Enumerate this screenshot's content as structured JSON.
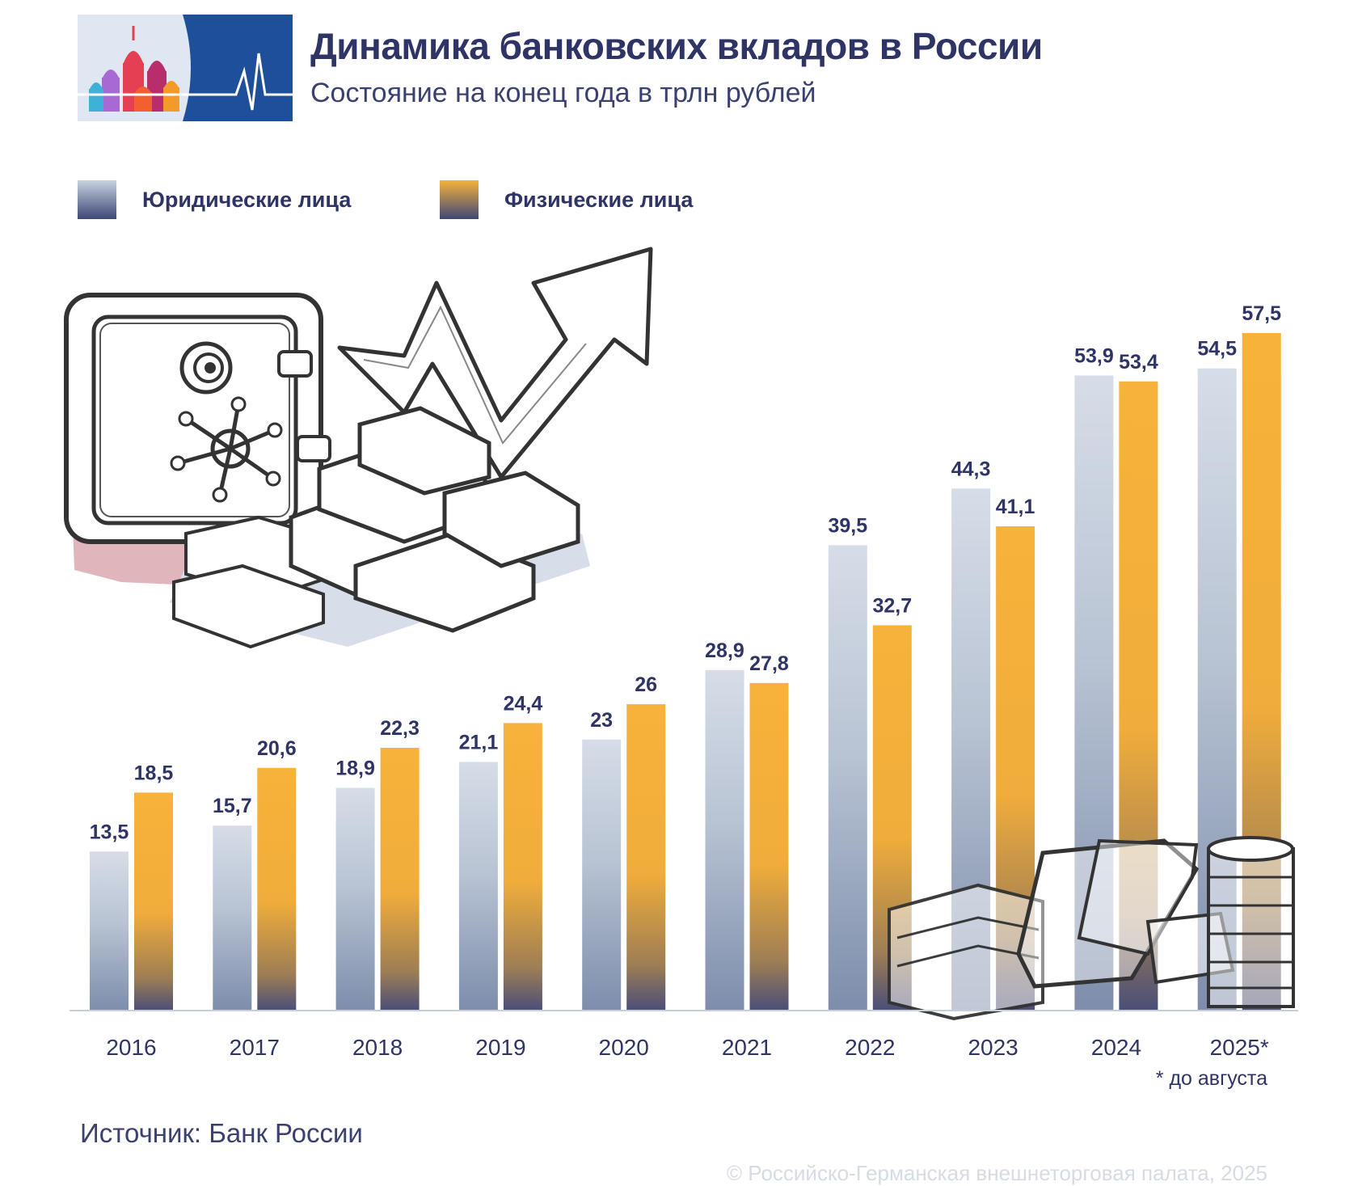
{
  "header": {
    "title": "Динамика банковских вкладов в России",
    "subtitle": "Состояние на конец года в трлн рублей"
  },
  "legend": [
    {
      "label": "Юридические лица",
      "color": "#d2dae6"
    },
    {
      "label": "Физические лица",
      "color": "#f6b23a"
    }
  ],
  "chart_data": {
    "type": "bar",
    "title": "Динамика банковских вкладов в России",
    "subtitle": "Состояние на конец года в трлн рублей",
    "categories": [
      "2016",
      "2017",
      "2018",
      "2019",
      "2020",
      "2021",
      "2022",
      "2023",
      "2024",
      "2025*"
    ],
    "series": [
      {
        "name": "Юридические лица",
        "values": [
          13.5,
          15.7,
          18.9,
          21.1,
          23,
          28.9,
          39.5,
          44.3,
          53.9,
          54.5
        ],
        "labels": [
          "13,5",
          "15,7",
          "18,9",
          "21,1",
          "23",
          "28,9",
          "39,5",
          "44,3",
          "53,9",
          "54,5"
        ]
      },
      {
        "name": "Физические лица",
        "values": [
          18.5,
          20.6,
          22.3,
          24.4,
          26,
          27.8,
          32.7,
          41.1,
          53.4,
          57.5
        ],
        "labels": [
          "18,5",
          "20,6",
          "22,3",
          "24,4",
          "26",
          "27,8",
          "32,7",
          "41,1",
          "53,4",
          "57,5"
        ]
      }
    ],
    "ylim": [
      0,
      57.5
    ],
    "grid": false,
    "legend_position": "top-left"
  },
  "footnote": "* до августа",
  "source": "Источник: Банк России",
  "copyright": "© Российско-Германская внешнеторговая палата, 2025",
  "colors": {
    "primary": "#2f3466",
    "gray_bar": "#d2dae6",
    "gold_bar": "#f6b23a",
    "bar_bottom": "#3d4776",
    "logo_blue": "#1e4f9a"
  }
}
